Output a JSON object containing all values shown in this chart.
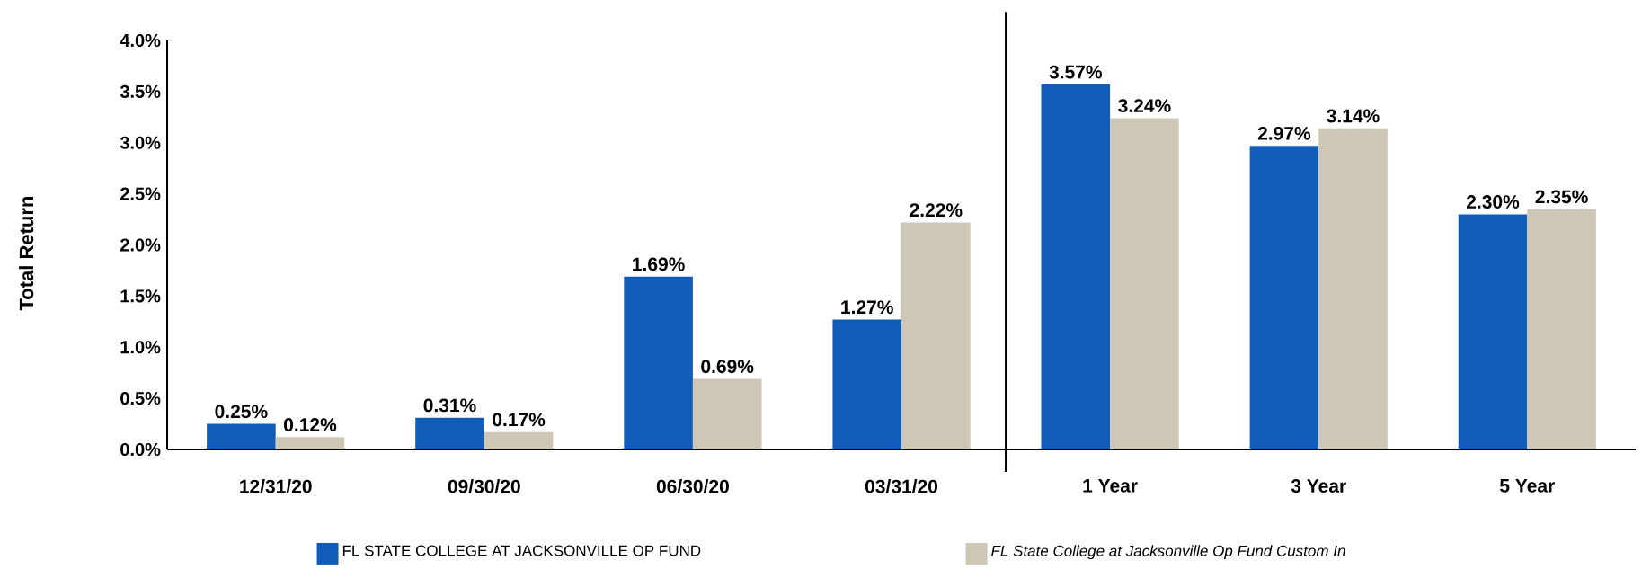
{
  "chart_data": {
    "type": "bar",
    "ylabel": "Total Return",
    "categories": [
      "12/31/20",
      "09/30/20",
      "06/30/20",
      "03/31/20",
      "1 Year",
      "3 Year",
      "5 Year"
    ],
    "series": [
      {
        "name": "FL STATE COLLEGE AT JACKSONVILLE OP FUND",
        "color": "#105cb8",
        "values": [
          0.25,
          0.31,
          1.69,
          1.27,
          3.57,
          2.97,
          2.3
        ],
        "value_labels": [
          "0.25%",
          "0.31%",
          "1.69%",
          "1.27%",
          "3.57%",
          "2.97%",
          "2.30%"
        ]
      },
      {
        "name": "FL State College at Jacksonville Op Fund Custom In",
        "color": "#cfc7b5",
        "values": [
          0.12,
          0.17,
          0.69,
          2.22,
          3.24,
          3.14,
          2.35
        ],
        "value_labels": [
          "0.12%",
          "0.17%",
          "0.69%",
          "2.22%",
          "3.24%",
          "3.14%",
          "2.35%"
        ]
      }
    ],
    "ylim": [
      0,
      4
    ],
    "yticks": [
      {
        "value": 0,
        "label": "0.0%"
      },
      {
        "value": 0.5,
        "label": "0.5%"
      },
      {
        "value": 1,
        "label": "1.0%"
      },
      {
        "value": 1.5,
        "label": "1.5%"
      },
      {
        "value": 2,
        "label": "2.0%"
      },
      {
        "value": 2.5,
        "label": "2.5%"
      },
      {
        "value": 3,
        "label": "3.0%"
      },
      {
        "value": 3.5,
        "label": "3.5%"
      },
      {
        "value": 4,
        "label": "4.0%"
      }
    ],
    "legend": "bottom"
  }
}
